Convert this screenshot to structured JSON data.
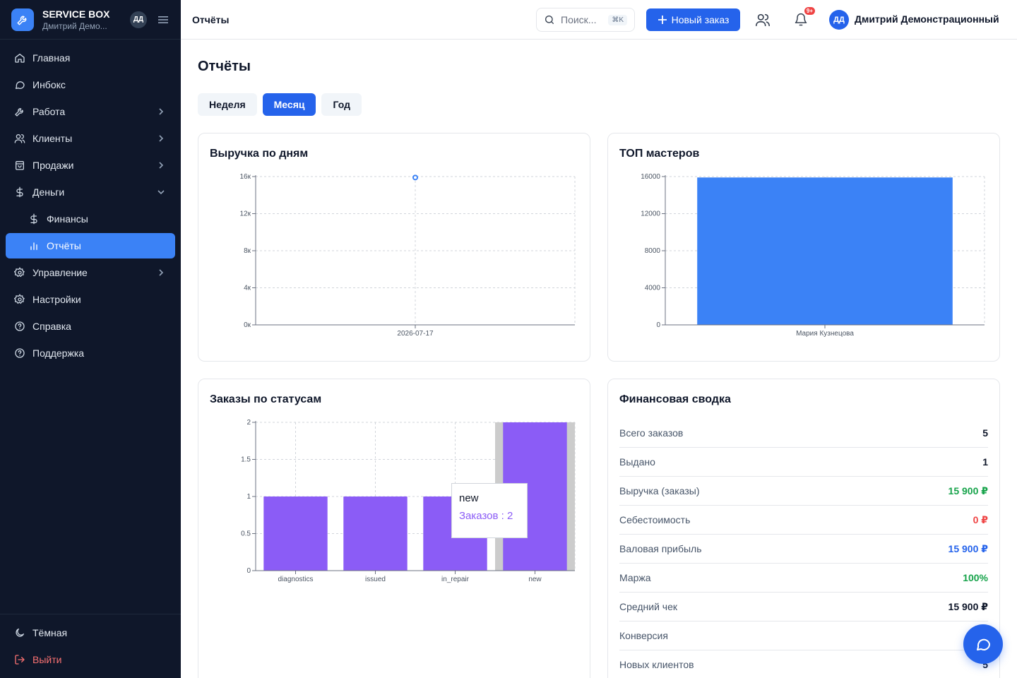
{
  "sidebar": {
    "brand_name": "SERVICE BOX",
    "brand_user": "Дмитрий Демо...",
    "brand_avatar": "ДД",
    "items": [
      {
        "label": "Главная",
        "icon": "home-icon"
      },
      {
        "label": "Инбокс",
        "icon": "chat-bubble-icon"
      },
      {
        "label": "Работа",
        "icon": "wrench-icon",
        "chevron": "right"
      },
      {
        "label": "Клиенты",
        "icon": "users-icon",
        "chevron": "right"
      },
      {
        "label": "Продажи",
        "icon": "bag-icon",
        "chevron": "right"
      },
      {
        "label": "Деньги",
        "icon": "dollar-icon",
        "chevron": "down"
      },
      {
        "label": "Финансы",
        "icon": "dollar-icon",
        "sub": true
      },
      {
        "label": "Отчёты",
        "icon": "bar-chart-icon",
        "sub": true,
        "active": true
      },
      {
        "label": "Управление",
        "icon": "gear-icon",
        "chevron": "right"
      },
      {
        "label": "Настройки",
        "icon": "gear-icon"
      },
      {
        "label": "Справка",
        "icon": "help-icon"
      },
      {
        "label": "Поддержка",
        "icon": "help-icon"
      }
    ],
    "theme_label": "Тёмная",
    "logout_label": "Выйти"
  },
  "header": {
    "title": "Отчёты",
    "search_placeholder": "Поиск...",
    "search_shortcut": "⌘K",
    "new_order_label": "Новый заказ",
    "notifications_badge": "9+",
    "user_avatar": "ДД",
    "user_name": "Дмитрий Демонстрационный"
  },
  "main": {
    "title": "Отчёты",
    "tabs": [
      {
        "label": "Неделя",
        "active": false
      },
      {
        "label": "Месяц",
        "active": true
      },
      {
        "label": "Год",
        "active": false
      }
    ]
  },
  "chart_data": [
    {
      "type": "line",
      "title": "Выручка по дням",
      "x": [
        "2026-07-17"
      ],
      "y": [
        15900
      ],
      "ylim": [
        0,
        16000
      ],
      "yticks": [
        "0к",
        "4к",
        "8к",
        "12к",
        "16к"
      ],
      "grid": true,
      "color": "#3b82f6"
    },
    {
      "type": "bar",
      "title": "ТОП мастеров",
      "categories": [
        "Мария Кузнецова"
      ],
      "values": [
        15900
      ],
      "ylim": [
        0,
        16000
      ],
      "yticks": [
        "0",
        "4000",
        "8000",
        "12000",
        "16000"
      ],
      "grid": true,
      "color": "#3b82f6"
    },
    {
      "type": "bar",
      "title": "Заказы по статусам",
      "categories": [
        "diagnostics",
        "issued",
        "in_repair",
        "new"
      ],
      "values": [
        1,
        1,
        1,
        2
      ],
      "ylim": [
        0,
        2
      ],
      "yticks": [
        "0",
        "0.5",
        "1",
        "1.5",
        "2"
      ],
      "grid": true,
      "color": "#8b5cf6",
      "hovered_category": "new",
      "tooltip": {
        "title": "new",
        "label": "Заказов : 2"
      }
    }
  ],
  "finance": {
    "title": "Финансовая сводка",
    "rows": [
      {
        "label": "Всего заказов",
        "value": "5",
        "color": "#0f172a"
      },
      {
        "label": "Выдано",
        "value": "1",
        "color": "#0f172a"
      },
      {
        "label": "Выручка (заказы)",
        "value": "15 900 ₽",
        "color": "#16a34a"
      },
      {
        "label": "Себестоимость",
        "value": "0 ₽",
        "color": "#ef4444"
      },
      {
        "label": "Валовая прибыль",
        "value": "15 900 ₽",
        "color": "#2563eb"
      },
      {
        "label": "Маржа",
        "value": "100%",
        "color": "#16a34a"
      },
      {
        "label": "Средний чек",
        "value": "15 900 ₽",
        "color": "#0f172a"
      },
      {
        "label": "Конверсия",
        "value": "",
        "color": "#0f172a"
      },
      {
        "label": "Новых клиентов",
        "value": "5",
        "color": "#0f172a"
      }
    ]
  }
}
